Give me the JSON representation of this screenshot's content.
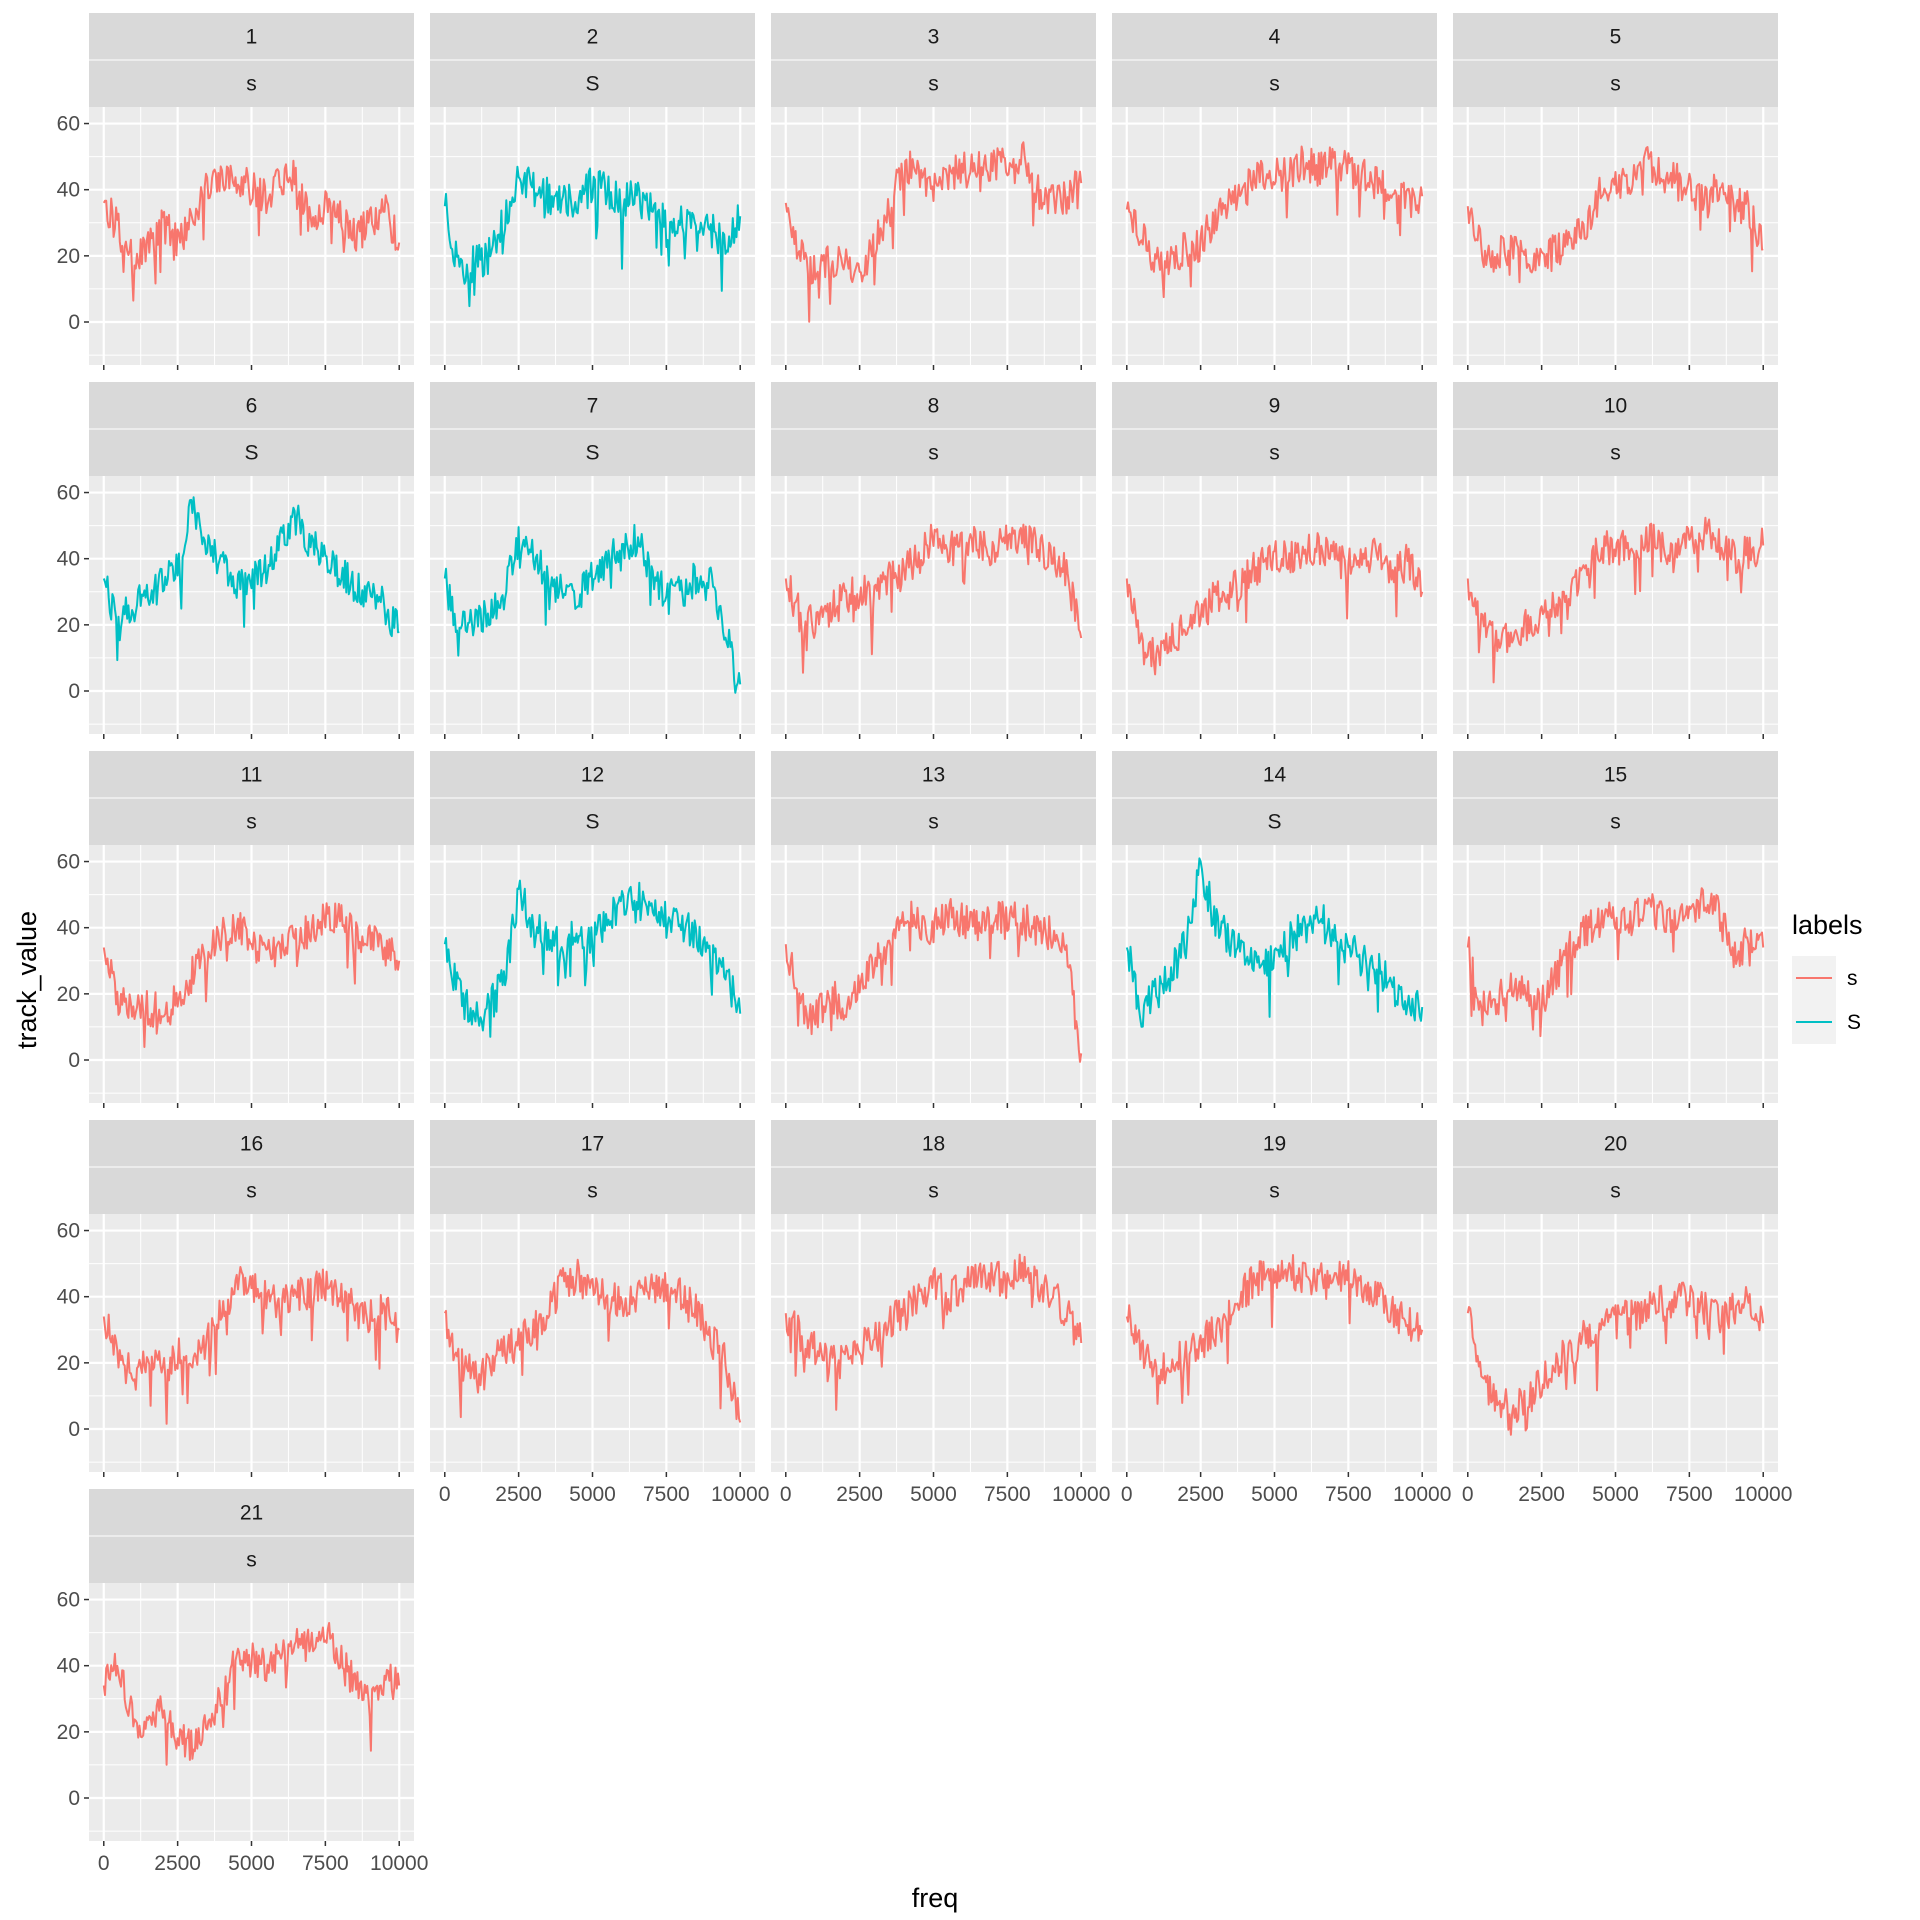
{
  "chart_data": {
    "type": "line",
    "layout": "facet_wrap",
    "ncol": 5,
    "xlabel": "freq",
    "ylabel": "track_value",
    "xlim": [
      -500,
      10500
    ],
    "ylim": [
      -13,
      65
    ],
    "xticks": [
      0,
      2500,
      5000,
      7500,
      10000
    ],
    "xtick_labels": [
      "0",
      "2500",
      "5000",
      "7500",
      "10000"
    ],
    "yticks": [
      0,
      20,
      40,
      60
    ],
    "ytick_labels": [
      "0",
      "20",
      "40",
      "60"
    ],
    "grid": true,
    "legend": {
      "title": "labels",
      "position": "right",
      "entries": [
        {
          "label": "s",
          "color": "#F8766D"
        },
        {
          "label": "S",
          "color": "#00BFC4"
        }
      ]
    },
    "colors": {
      "s": "#F8766D",
      "S": "#00BFC4"
    },
    "x": [
      0,
      500,
      1000,
      1500,
      2000,
      2500,
      3000,
      3500,
      4000,
      4500,
      5000,
      5500,
      6000,
      6500,
      7000,
      7500,
      8000,
      8500,
      9000,
      9500,
      10000
    ],
    "panels": [
      {
        "id": "1",
        "label": "s",
        "values": [
          36,
          28,
          18,
          22,
          30,
          24,
          32,
          40,
          45,
          44,
          40,
          38,
          42,
          44,
          30,
          36,
          32,
          26,
          30,
          34,
          24
        ]
      },
      {
        "id": "2",
        "label": "S",
        "values": [
          35,
          14,
          18,
          20,
          30,
          45,
          40,
          38,
          36,
          38,
          42,
          40,
          36,
          38,
          34,
          30,
          32,
          26,
          28,
          24,
          32
        ]
      },
      {
        "id": "3",
        "label": "s",
        "values": [
          36,
          20,
          16,
          18,
          20,
          12,
          24,
          34,
          48,
          44,
          42,
          44,
          46,
          46,
          48,
          48,
          50,
          40,
          36,
          38,
          42
        ]
      },
      {
        "id": "4",
        "label": "s",
        "values": [
          34,
          26,
          18,
          20,
          22,
          24,
          32,
          36,
          40,
          45,
          44,
          46,
          48,
          46,
          48,
          46,
          44,
          42,
          40,
          36,
          38
        ]
      },
      {
        "id": "5",
        "label": "s",
        "values": [
          35,
          22,
          20,
          24,
          20,
          18,
          22,
          24,
          28,
          40,
          42,
          44,
          48,
          46,
          44,
          40,
          38,
          40,
          36,
          34,
          22
        ]
      },
      {
        "id": "6",
        "label": "S",
        "values": [
          34,
          20,
          26,
          30,
          32,
          38,
          56,
          44,
          38,
          32,
          34,
          36,
          46,
          52,
          44,
          40,
          36,
          32,
          30,
          26,
          18
        ]
      },
      {
        "id": "7",
        "label": "S",
        "values": [
          34,
          18,
          22,
          24,
          30,
          46,
          40,
          34,
          30,
          28,
          36,
          40,
          42,
          46,
          36,
          28,
          30,
          34,
          32,
          20,
          2
        ]
      },
      {
        "id": "8",
        "label": "s",
        "values": [
          34,
          22,
          20,
          24,
          28,
          30,
          30,
          34,
          36,
          40,
          46,
          44,
          46,
          44,
          42,
          48,
          46,
          44,
          40,
          36,
          16
        ]
      },
      {
        "id": "9",
        "label": "s",
        "values": [
          34,
          14,
          10,
          16,
          20,
          24,
          28,
          30,
          34,
          38,
          42,
          40,
          42,
          44,
          40,
          38,
          42,
          44,
          36,
          40,
          30
        ]
      },
      {
        "id": "10",
        "label": "s",
        "values": [
          34,
          20,
          14,
          18,
          20,
          24,
          28,
          30,
          34,
          44,
          42,
          44,
          46,
          44,
          40,
          46,
          48,
          44,
          40,
          42,
          44
        ]
      },
      {
        "id": "11",
        "label": "s",
        "values": [
          34,
          18,
          14,
          16,
          14,
          18,
          26,
          32,
          38,
          40,
          36,
          32,
          34,
          36,
          40,
          44,
          42,
          38,
          36,
          34,
          30
        ]
      },
      {
        "id": "12",
        "label": "S",
        "values": [
          35,
          20,
          12,
          16,
          24,
          50,
          42,
          36,
          34,
          38,
          36,
          42,
          46,
          50,
          46,
          44,
          42,
          38,
          34,
          26,
          14
        ]
      },
      {
        "id": "13",
        "label": "s",
        "values": [
          35,
          16,
          12,
          20,
          16,
          24,
          30,
          36,
          44,
          42,
          40,
          44,
          42,
          40,
          42,
          44,
          42,
          40,
          38,
          34,
          2
        ]
      },
      {
        "id": "14",
        "label": "S",
        "values": [
          34,
          14,
          20,
          26,
          36,
          58,
          42,
          36,
          34,
          30,
          30,
          36,
          40,
          44,
          36,
          34,
          30,
          28,
          22,
          18,
          16
        ]
      },
      {
        "id": "15",
        "label": "s",
        "values": [
          34,
          16,
          18,
          22,
          20,
          18,
          26,
          34,
          40,
          42,
          44,
          42,
          46,
          44,
          42,
          46,
          48,
          44,
          32,
          36,
          34
        ]
      },
      {
        "id": "16",
        "label": "s",
        "values": [
          34,
          22,
          18,
          20,
          18,
          22,
          24,
          26,
          36,
          44,
          42,
          40,
          38,
          40,
          42,
          44,
          40,
          36,
          34,
          36,
          30
        ]
      },
      {
        "id": "17",
        "label": "s",
        "values": [
          35,
          20,
          16,
          18,
          24,
          26,
          30,
          36,
          44,
          46,
          42,
          40,
          38,
          40,
          42,
          44,
          40,
          36,
          28,
          20,
          2
        ]
      },
      {
        "id": "18",
        "label": "s",
        "values": [
          35,
          28,
          24,
          22,
          20,
          24,
          28,
          32,
          36,
          40,
          44,
          40,
          44,
          48,
          46,
          44,
          48,
          44,
          40,
          36,
          26
        ]
      },
      {
        "id": "19",
        "label": "s",
        "values": [
          34,
          24,
          18,
          20,
          22,
          26,
          30,
          34,
          42,
          46,
          44,
          48,
          46,
          44,
          48,
          46,
          42,
          40,
          36,
          32,
          30
        ]
      },
      {
        "id": "20",
        "label": "s",
        "values": [
          35,
          16,
          8,
          6,
          8,
          14,
          20,
          24,
          28,
          30,
          32,
          34,
          36,
          38,
          38,
          40,
          36,
          34,
          36,
          38,
          32
        ]
      },
      {
        "id": "21",
        "label": "s",
        "values": [
          34,
          40,
          24,
          22,
          26,
          18,
          16,
          22,
          30,
          44,
          42,
          40,
          46,
          48,
          46,
          50,
          42,
          34,
          30,
          36,
          34
        ]
      }
    ]
  }
}
